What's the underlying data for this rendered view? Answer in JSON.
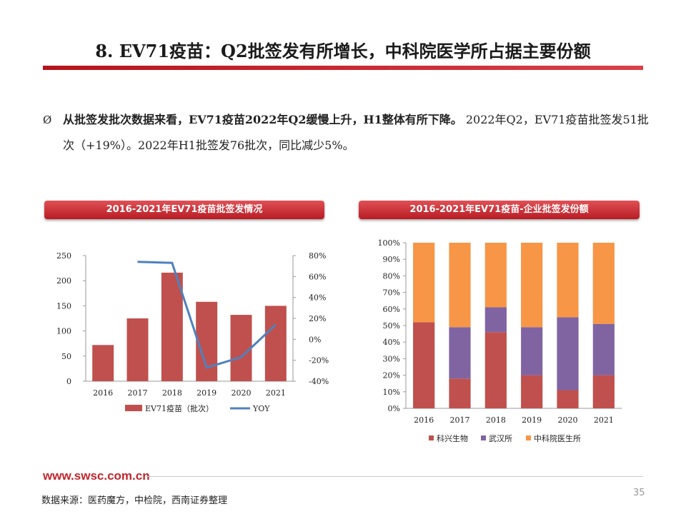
{
  "title": "8. EV71疫苗：Q2批签发有所增长，中科院医学所占据主要份额",
  "bullet": {
    "mark": "Ø",
    "bold_text": "从批签发批次数据来看，EV71疫苗2022年Q2缓慢上升，H1整体有所下降。",
    "normal_text": "2022年Q2，EV71疫苗批签发51批次（+19%）。2022年H1批签发76批次，同比减少5%。"
  },
  "chart_left_title": "2016-2021年EV71疫苗批签发情况",
  "chart_right_title": "2016-2021年EV71疫苗-企业批签发份额",
  "chart_data": [
    {
      "type": "bar",
      "categories": [
        "2016",
        "2017",
        "2018",
        "2019",
        "2020",
        "2021"
      ],
      "series": [
        {
          "name": "EV71疫苗（批次）",
          "type": "bar",
          "axis": "left",
          "values": [
            72,
            125,
            216,
            158,
            132,
            150
          ],
          "color": "#c0504d"
        },
        {
          "name": "YOY",
          "type": "line",
          "axis": "right",
          "values": [
            null,
            74,
            73,
            -27,
            -17,
            14
          ],
          "color": "#4f81bd"
        }
      ],
      "y_left": {
        "min": 0,
        "max": 250,
        "ticks": [
          "0",
          "50",
          "100",
          "150",
          "200",
          "250"
        ]
      },
      "y_right": {
        "min": -40,
        "max": 80,
        "ticks": [
          "-40%",
          "-20%",
          "0%",
          "20%",
          "40%",
          "60%",
          "80%"
        ]
      },
      "legend": "bottom"
    },
    {
      "type": "stacked_bar",
      "categories": [
        "2016",
        "2017",
        "2018",
        "2019",
        "2020",
        "2021"
      ],
      "series": [
        {
          "name": "科兴生物",
          "values": [
            52,
            18,
            46,
            20,
            11,
            20
          ],
          "color": "#c0504d"
        },
        {
          "name": "武汉所",
          "values": [
            0,
            31,
            15,
            29,
            44,
            31
          ],
          "color": "#8064a2"
        },
        {
          "name": "中科院医生所",
          "values": [
            48,
            51,
            39,
            51,
            45,
            49
          ],
          "color": "#f79646"
        }
      ],
      "y": {
        "min": 0,
        "max": 100,
        "ticks": [
          "0%",
          "10%",
          "20%",
          "30%",
          "40%",
          "50%",
          "60%",
          "70%",
          "80%",
          "90%",
          "100%"
        ]
      },
      "legend": "bottom"
    }
  ],
  "footer": {
    "url": "www.swsc.com.cn",
    "source": "数据来源：医药魔方，中检院，西南证券整理",
    "page_number": "35"
  }
}
